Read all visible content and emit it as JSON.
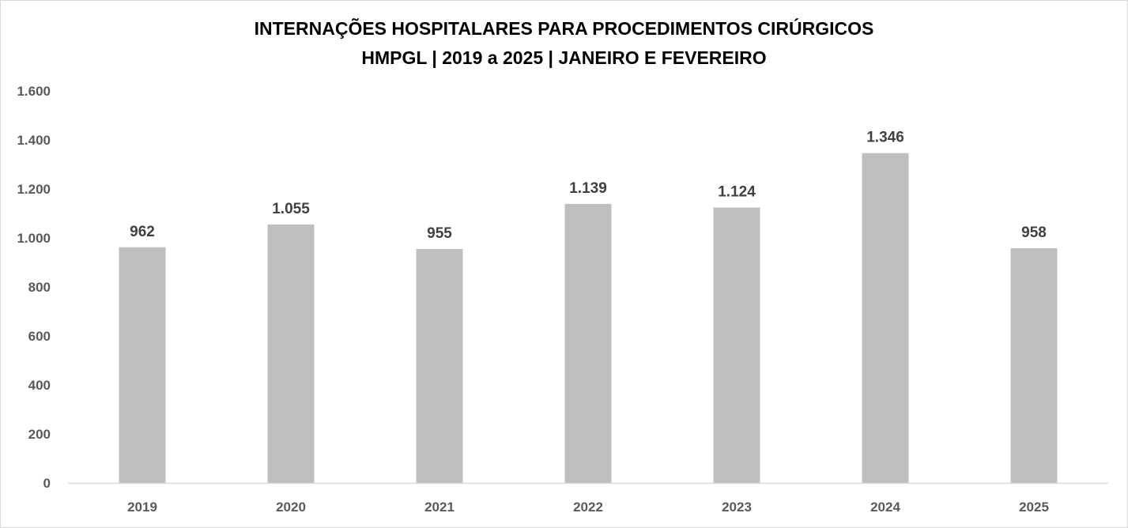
{
  "chart_data": {
    "type": "bar",
    "title": "INTERNAÇÕES HOSPITALARES PARA PROCEDIMENTOS CIRÚRGICOS",
    "subtitle": "HMPGL | 2019 a 2025 | JANEIRO E FEVEREIRO",
    "xlabel": "",
    "ylabel": "",
    "categories": [
      "2019",
      "2020",
      "2021",
      "2022",
      "2023",
      "2024",
      "2025"
    ],
    "values": [
      962,
      1055,
      955,
      1139,
      1124,
      1346,
      958
    ],
    "data_labels": [
      "962",
      "1.055",
      "955",
      "1.139",
      "1.124",
      "1.346",
      "958"
    ],
    "ylim": [
      0,
      1600
    ],
    "yticks": [
      0,
      200,
      400,
      600,
      800,
      1000,
      1200,
      1400,
      1600
    ],
    "ytick_labels": [
      "0",
      "200",
      "400",
      "600",
      "800",
      "1.000",
      "1.200",
      "1.400",
      "1.600"
    ],
    "grid": false,
    "legend": "none",
    "colors": {
      "bar": "#bfbfbf",
      "axis": "#d9d9d9",
      "border": "#d9d9d9"
    }
  }
}
